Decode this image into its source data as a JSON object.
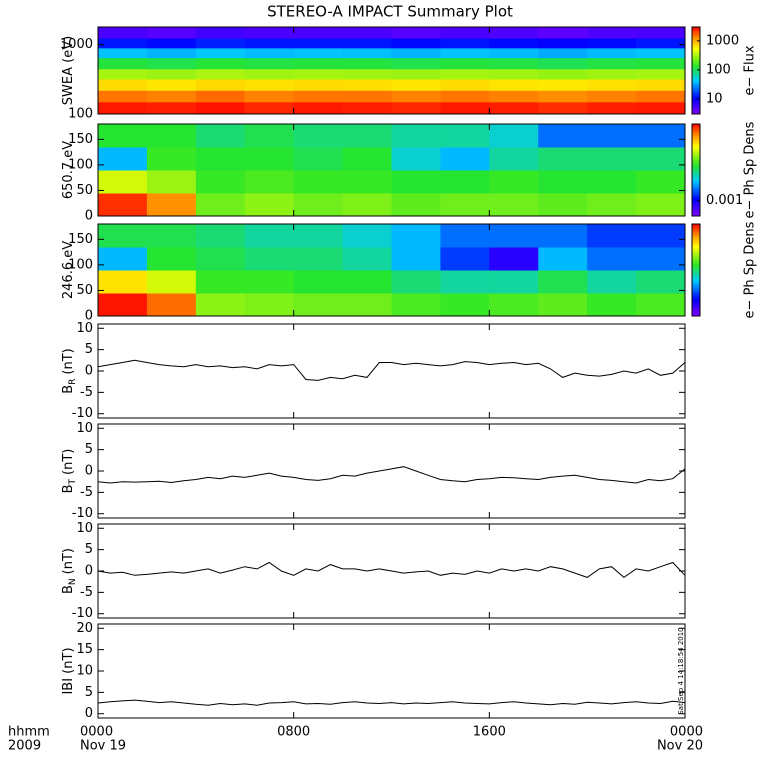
{
  "title": "STEREO-A IMPACT Summary Plot",
  "timestamp": "Sat Sep  4 14:18:54 2010",
  "xaxis": {
    "xlim": [
      0,
      24
    ],
    "xticks": [
      {
        "value": 0,
        "label": "0000"
      },
      {
        "value": 8,
        "label": "0800"
      },
      {
        "value": 16,
        "label": "1600"
      },
      {
        "value": 24,
        "label": "0000"
      }
    ],
    "dates": [
      "Nov 19",
      null,
      null,
      "Nov 20"
    ],
    "corner_labels": [
      "hhmm",
      "2009"
    ]
  },
  "time": [
    0,
    0.5,
    1,
    1.5,
    2,
    2.5,
    3,
    3.5,
    4,
    4.5,
    5,
    5.5,
    6,
    6.5,
    7,
    7.5,
    8,
    8.5,
    9,
    9.5,
    10,
    10.5,
    11,
    11.5,
    12,
    12.5,
    13,
    13.5,
    14,
    14.5,
    15,
    15.5,
    16,
    16.5,
    17,
    17.5,
    18,
    18.5,
    19,
    19.5,
    20,
    20.5,
    21,
    21.5,
    22,
    22.5,
    23,
    23.5,
    24
  ],
  "heat_x_edges": [
    0,
    2,
    4,
    6,
    8,
    10,
    12,
    14,
    16,
    18,
    20,
    22,
    24
  ],
  "chart_data": [
    {
      "type": "heatmap",
      "ylabel": "SWEA (eV)",
      "ylog": true,
      "ylim": [
        100,
        1800
      ],
      "yticks": [
        100,
        1000
      ],
      "y_edges": [
        100,
        150,
        220,
        320,
        450,
        650,
        900,
        1250,
        1800
      ],
      "zlog": true,
      "zlim": [
        3,
        3000
      ],
      "zticks": [
        10,
        100,
        1000
      ],
      "zlabel": "e− Flux",
      "z": [
        [
          2600,
          2500,
          2700,
          2400,
          2600,
          2500,
          2400,
          2600,
          2500,
          2300,
          2500,
          2600
        ],
        [
          1500,
          1400,
          1600,
          1400,
          1500,
          1500,
          1400,
          1500,
          1400,
          1300,
          1400,
          1500
        ],
        [
          700,
          650,
          720,
          680,
          700,
          690,
          650,
          700,
          660,
          640,
          680,
          700
        ],
        [
          300,
          280,
          310,
          290,
          300,
          290,
          280,
          300,
          290,
          270,
          290,
          300
        ],
        [
          120,
          110,
          125,
          115,
          120,
          118,
          110,
          120,
          115,
          105,
          115,
          120
        ],
        [
          40,
          36,
          42,
          38,
          40,
          39,
          36,
          40,
          38,
          34,
          38,
          40
        ],
        [
          12,
          11,
          13,
          12,
          12,
          12,
          11,
          12,
          11,
          10,
          11,
          12
        ],
        [
          5,
          4.5,
          5.5,
          5,
          5,
          5,
          4.5,
          5,
          4.8,
          4.2,
          4.8,
          5
        ]
      ]
    },
    {
      "type": "heatmap",
      "ylabel": "650.7 eV",
      "ylog": false,
      "ylim": [
        0,
        180
      ],
      "yticks": [
        0,
        50,
        100,
        150
      ],
      "y_edges": [
        0,
        45,
        90,
        135,
        180
      ],
      "zlog": true,
      "zlim": [
        0.0004,
        0.1
      ],
      "zticks": [
        0.001
      ],
      "zlabel": "e− Ph Sp Dens",
      "z": [
        [
          0.08,
          0.05,
          0.012,
          0.014,
          0.012,
          0.013,
          0.011,
          0.012,
          0.012,
          0.011,
          0.012,
          0.013
        ],
        [
          0.02,
          0.015,
          0.009,
          0.01,
          0.009,
          0.009,
          0.008,
          0.008,
          0.009,
          0.008,
          0.008,
          0.009
        ],
        [
          0.003,
          0.009,
          0.008,
          0.008,
          0.007,
          0.008,
          0.004,
          0.003,
          0.005,
          0.006,
          0.006,
          0.006
        ],
        [
          0.008,
          0.008,
          0.006,
          0.007,
          0.006,
          0.006,
          0.005,
          0.005,
          0.004,
          0.002,
          0.002,
          0.002
        ]
      ]
    },
    {
      "type": "heatmap",
      "ylabel": "246.6 eV",
      "ylog": false,
      "ylim": [
        0,
        180
      ],
      "yticks": [
        0,
        50,
        100,
        150
      ],
      "y_edges": [
        0,
        45,
        90,
        135,
        180
      ],
      "zlog": true,
      "zlim": [
        0.0004,
        0.1
      ],
      "zticks": [],
      "zlabel": "e− Ph Sp Dens",
      "z": [
        [
          0.09,
          0.06,
          0.014,
          0.013,
          0.012,
          0.012,
          0.01,
          0.009,
          0.01,
          0.011,
          0.009,
          0.01
        ],
        [
          0.03,
          0.02,
          0.009,
          0.009,
          0.008,
          0.008,
          0.006,
          0.005,
          0.005,
          0.007,
          0.005,
          0.006
        ],
        [
          0.003,
          0.008,
          0.007,
          0.006,
          0.006,
          0.005,
          0.003,
          0.0015,
          0.0008,
          0.003,
          0.002,
          0.002
        ],
        [
          0.007,
          0.007,
          0.006,
          0.005,
          0.005,
          0.004,
          0.003,
          0.002,
          0.002,
          0.002,
          0.0015,
          0.0015
        ]
      ]
    },
    {
      "type": "line",
      "ylabel": "B",
      "ylabel_sub": "R",
      "ylabel_unit": "(nT)",
      "ylim": [
        -11,
        11
      ],
      "yticks": [
        -10,
        -5,
        0,
        5,
        10
      ],
      "color": "#000000",
      "values": [
        1.0,
        1.5,
        2.0,
        2.5,
        2.0,
        1.5,
        1.2,
        1.0,
        1.5,
        1.0,
        1.2,
        0.8,
        1.0,
        0.5,
        1.5,
        1.2,
        1.5,
        -2.0,
        -2.2,
        -1.5,
        -1.8,
        -1.0,
        -1.5,
        2.0,
        2.0,
        1.5,
        1.8,
        1.5,
        1.2,
        1.5,
        2.2,
        2.0,
        1.5,
        1.8,
        2.0,
        1.5,
        1.8,
        0.5,
        -1.5,
        -0.5,
        -1.0,
        -1.2,
        -0.8,
        0.0,
        -0.5,
        0.5,
        -1.0,
        -0.5,
        2.0
      ]
    },
    {
      "type": "line",
      "ylabel": "B",
      "ylabel_sub": "T",
      "ylabel_unit": "(nT)",
      "ylim": [
        -11,
        11
      ],
      "yticks": [
        -10,
        -5,
        0,
        5,
        10
      ],
      "color": "#000000",
      "values": [
        -2.5,
        -2.8,
        -2.5,
        -2.6,
        -2.5,
        -2.4,
        -2.7,
        -2.3,
        -2.0,
        -1.5,
        -1.8,
        -1.2,
        -1.5,
        -1.0,
        -0.5,
        -1.2,
        -1.5,
        -2.0,
        -2.2,
        -1.8,
        -1.0,
        -1.2,
        -0.5,
        0.0,
        0.5,
        1.0,
        0.0,
        -1.0,
        -2.0,
        -2.3,
        -2.5,
        -2.0,
        -1.8,
        -1.5,
        -1.6,
        -1.8,
        -2.0,
        -1.5,
        -1.2,
        -1.0,
        -1.5,
        -2.0,
        -2.2,
        -2.5,
        -2.8,
        -2.0,
        -2.3,
        -1.8,
        0.5
      ]
    },
    {
      "type": "line",
      "ylabel": "B",
      "ylabel_sub": "N",
      "ylabel_unit": "(nT)",
      "ylim": [
        -11,
        11
      ],
      "yticks": [
        -10,
        -5,
        0,
        5,
        10
      ],
      "color": "#000000",
      "values": [
        0.0,
        -0.5,
        -0.3,
        -1.0,
        -0.8,
        -0.5,
        -0.2,
        -0.5,
        0.0,
        0.5,
        -0.5,
        0.2,
        1.0,
        0.5,
        2.0,
        0.0,
        -1.0,
        0.5,
        0.0,
        1.5,
        0.5,
        0.5,
        0.0,
        0.5,
        0.0,
        -0.5,
        -0.2,
        0.0,
        -1.0,
        -0.5,
        -0.8,
        0.0,
        -0.5,
        0.5,
        0.0,
        0.5,
        0.0,
        1.0,
        0.5,
        -0.5,
        -1.5,
        0.5,
        1.0,
        -1.5,
        0.5,
        0.0,
        1.0,
        2.0,
        -1.0
      ]
    },
    {
      "type": "line",
      "ylabel": "IBI (nT)",
      "ylim": [
        -1,
        21
      ],
      "yticks": [
        0,
        5,
        10,
        15,
        20
      ],
      "color": "#000000",
      "values": [
        2.5,
        2.8,
        3.0,
        3.2,
        2.9,
        2.6,
        2.8,
        2.5,
        2.2,
        2.0,
        2.4,
        2.1,
        2.3,
        2.0,
        2.5,
        2.6,
        2.8,
        2.3,
        2.4,
        2.2,
        2.6,
        2.8,
        2.5,
        2.4,
        2.6,
        2.3,
        2.5,
        2.4,
        2.6,
        2.8,
        2.5,
        2.4,
        2.3,
        2.6,
        2.8,
        2.5,
        2.3,
        2.1,
        2.4,
        2.2,
        2.7,
        2.5,
        2.3,
        2.6,
        2.8,
        2.5,
        2.4,
        2.9,
        2.6
      ]
    }
  ]
}
